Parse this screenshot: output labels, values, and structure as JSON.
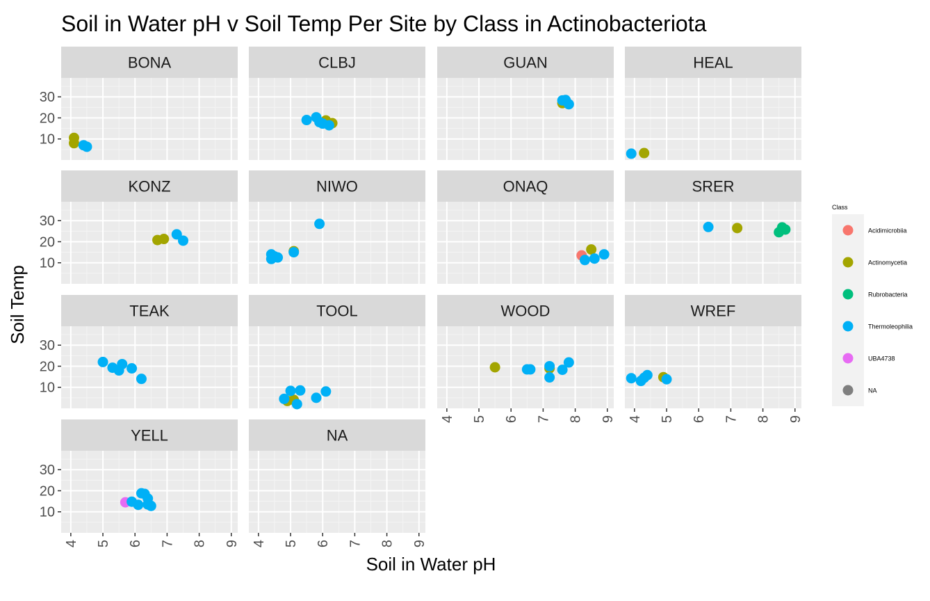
{
  "chart_data": {
    "type": "scatter",
    "title": "Soil in Water pH v Soil Temp Per Site by Class in Actinobacteriota",
    "xlabel": "Soil in Water pH",
    "ylabel": "Soil Temp",
    "xlim": [
      3.7,
      9.2
    ],
    "ylim": [
      0,
      39
    ],
    "x_ticks": [
      4,
      5,
      6,
      7,
      8,
      9
    ],
    "y_ticks": [
      10,
      20,
      30
    ],
    "grid": true,
    "legend": {
      "title": "Class",
      "placement": "right",
      "entries": [
        {
          "name": "Acidimicrobiia",
          "color": "#F8766D"
        },
        {
          "name": "Actinomycetia",
          "color": "#A3A500"
        },
        {
          "name": "Rubrobacteria",
          "color": "#00BF7D"
        },
        {
          "name": "Thermoleophilia",
          "color": "#00B0F6"
        },
        {
          "name": "UBA4738",
          "color": "#E76BF3"
        },
        {
          "name": "NA",
          "color": "#7F7F7F"
        }
      ]
    },
    "facets": [
      {
        "name": "BONA",
        "points": [
          {
            "x": 4.1,
            "y": 10.5,
            "class": "Actinomycetia"
          },
          {
            "x": 4.1,
            "y": 8.0,
            "class": "Actinomycetia"
          },
          {
            "x": 4.4,
            "y": 7.0,
            "class": "Thermoleophilia"
          },
          {
            "x": 4.5,
            "y": 6.3,
            "class": "Thermoleophilia"
          }
        ]
      },
      {
        "name": "CLBJ",
        "points": [
          {
            "x": 5.5,
            "y": 19.0,
            "class": "Thermoleophilia"
          },
          {
            "x": 5.8,
            "y": 20.3,
            "class": "Thermoleophilia"
          },
          {
            "x": 6.1,
            "y": 18.8,
            "class": "Actinomycetia"
          },
          {
            "x": 6.3,
            "y": 17.5,
            "class": "Actinomycetia"
          },
          {
            "x": 5.9,
            "y": 18.0,
            "class": "Thermoleophilia"
          },
          {
            "x": 6.0,
            "y": 17.3,
            "class": "Thermoleophilia"
          },
          {
            "x": 6.2,
            "y": 16.5,
            "class": "Thermoleophilia"
          }
        ]
      },
      {
        "name": "GUAN",
        "points": [
          {
            "x": 7.6,
            "y": 27.0,
            "class": "Actinomycetia"
          },
          {
            "x": 7.6,
            "y": 28.3,
            "class": "Thermoleophilia"
          },
          {
            "x": 7.7,
            "y": 28.5,
            "class": "Thermoleophilia"
          },
          {
            "x": 7.8,
            "y": 26.5,
            "class": "Thermoleophilia"
          }
        ]
      },
      {
        "name": "HEAL",
        "points": [
          {
            "x": 3.9,
            "y": 3.0,
            "class": "Thermoleophilia"
          },
          {
            "x": 4.3,
            "y": 3.3,
            "class": "Actinomycetia"
          }
        ]
      },
      {
        "name": "KONZ",
        "points": [
          {
            "x": 6.7,
            "y": 20.8,
            "class": "Actinomycetia"
          },
          {
            "x": 6.9,
            "y": 21.3,
            "class": "Actinomycetia"
          },
          {
            "x": 7.3,
            "y": 23.5,
            "class": "Thermoleophilia"
          },
          {
            "x": 7.5,
            "y": 20.5,
            "class": "Thermoleophilia"
          }
        ]
      },
      {
        "name": "NIWO",
        "points": [
          {
            "x": 5.9,
            "y": 28.5,
            "class": "Thermoleophilia"
          },
          {
            "x": 5.1,
            "y": 15.5,
            "class": "Actinomycetia"
          },
          {
            "x": 5.1,
            "y": 15.0,
            "class": "Thermoleophilia"
          },
          {
            "x": 4.4,
            "y": 14.0,
            "class": "Thermoleophilia"
          },
          {
            "x": 4.5,
            "y": 13.0,
            "class": "Thermoleophilia"
          },
          {
            "x": 4.6,
            "y": 12.5,
            "class": "Thermoleophilia"
          },
          {
            "x": 4.4,
            "y": 11.8,
            "class": "Thermoleophilia"
          }
        ]
      },
      {
        "name": "ONAQ",
        "points": [
          {
            "x": 8.5,
            "y": 16.3,
            "class": "Actinomycetia"
          },
          {
            "x": 8.2,
            "y": 13.5,
            "class": "Acidimicrobiia"
          },
          {
            "x": 8.3,
            "y": 11.3,
            "class": "Thermoleophilia"
          },
          {
            "x": 8.6,
            "y": 12.0,
            "class": "Thermoleophilia"
          },
          {
            "x": 8.9,
            "y": 14.0,
            "class": "Thermoleophilia"
          }
        ]
      },
      {
        "name": "SRER",
        "points": [
          {
            "x": 6.3,
            "y": 27.0,
            "class": "Thermoleophilia"
          },
          {
            "x": 7.2,
            "y": 26.5,
            "class": "Actinomycetia"
          },
          {
            "x": 8.6,
            "y": 26.0,
            "class": "UBA4738"
          },
          {
            "x": 8.6,
            "y": 26.8,
            "class": "Rubrobacteria"
          },
          {
            "x": 8.7,
            "y": 25.8,
            "class": "Rubrobacteria"
          },
          {
            "x": 8.5,
            "y": 24.5,
            "class": "Rubrobacteria"
          }
        ]
      },
      {
        "name": "TEAK",
        "points": [
          {
            "x": 5.0,
            "y": 22.0,
            "class": "Thermoleophilia"
          },
          {
            "x": 5.6,
            "y": 21.0,
            "class": "Thermoleophilia"
          },
          {
            "x": 5.3,
            "y": 19.3,
            "class": "Thermoleophilia"
          },
          {
            "x": 5.5,
            "y": 18.0,
            "class": "Thermoleophilia"
          },
          {
            "x": 5.9,
            "y": 19.0,
            "class": "Thermoleophilia"
          },
          {
            "x": 6.2,
            "y": 14.0,
            "class": "Thermoleophilia"
          }
        ]
      },
      {
        "name": "TOOL",
        "points": [
          {
            "x": 4.9,
            "y": 3.5,
            "class": "Actinomycetia"
          },
          {
            "x": 5.1,
            "y": 4.0,
            "class": "Actinomycetia"
          },
          {
            "x": 4.8,
            "y": 4.5,
            "class": "Thermoleophilia"
          },
          {
            "x": 5.0,
            "y": 8.3,
            "class": "Thermoleophilia"
          },
          {
            "x": 5.3,
            "y": 8.5,
            "class": "Thermoleophilia"
          },
          {
            "x": 5.8,
            "y": 5.0,
            "class": "Thermoleophilia"
          },
          {
            "x": 6.1,
            "y": 8.0,
            "class": "Thermoleophilia"
          },
          {
            "x": 5.2,
            "y": 2.0,
            "class": "Thermoleophilia"
          }
        ]
      },
      {
        "name": "WOOD",
        "points": [
          {
            "x": 5.5,
            "y": 19.5,
            "class": "Actinomycetia"
          },
          {
            "x": 6.5,
            "y": 18.5,
            "class": "Thermoleophilia"
          },
          {
            "x": 6.6,
            "y": 18.5,
            "class": "Thermoleophilia"
          },
          {
            "x": 7.2,
            "y": 19.0,
            "class": "Actinomycetia"
          },
          {
            "x": 7.2,
            "y": 20.0,
            "class": "Thermoleophilia"
          },
          {
            "x": 7.2,
            "y": 14.7,
            "class": "Thermoleophilia"
          },
          {
            "x": 7.6,
            "y": 18.3,
            "class": "Thermoleophilia"
          },
          {
            "x": 7.8,
            "y": 21.8,
            "class": "Thermoleophilia"
          }
        ]
      },
      {
        "name": "WREF",
        "points": [
          {
            "x": 3.9,
            "y": 14.3,
            "class": "Thermoleophilia"
          },
          {
            "x": 4.2,
            "y": 13.0,
            "class": "Thermoleophilia"
          },
          {
            "x": 4.3,
            "y": 14.5,
            "class": "Thermoleophilia"
          },
          {
            "x": 4.4,
            "y": 15.8,
            "class": "Thermoleophilia"
          },
          {
            "x": 4.9,
            "y": 14.8,
            "class": "Actinomycetia"
          },
          {
            "x": 5.0,
            "y": 13.8,
            "class": "Thermoleophilia"
          }
        ]
      },
      {
        "name": "YELL",
        "points": [
          {
            "x": 5.7,
            "y": 14.5,
            "class": "UBA4738"
          },
          {
            "x": 5.9,
            "y": 14.8,
            "class": "Thermoleophilia"
          },
          {
            "x": 6.1,
            "y": 13.3,
            "class": "Thermoleophilia"
          },
          {
            "x": 6.2,
            "y": 18.8,
            "class": "Thermoleophilia"
          },
          {
            "x": 6.3,
            "y": 18.5,
            "class": "Thermoleophilia"
          },
          {
            "x": 6.4,
            "y": 16.3,
            "class": "Thermoleophilia"
          },
          {
            "x": 6.4,
            "y": 13.5,
            "class": "Thermoleophilia"
          },
          {
            "x": 6.5,
            "y": 12.8,
            "class": "Thermoleophilia"
          }
        ]
      },
      {
        "name": "NA",
        "points": []
      }
    ]
  }
}
